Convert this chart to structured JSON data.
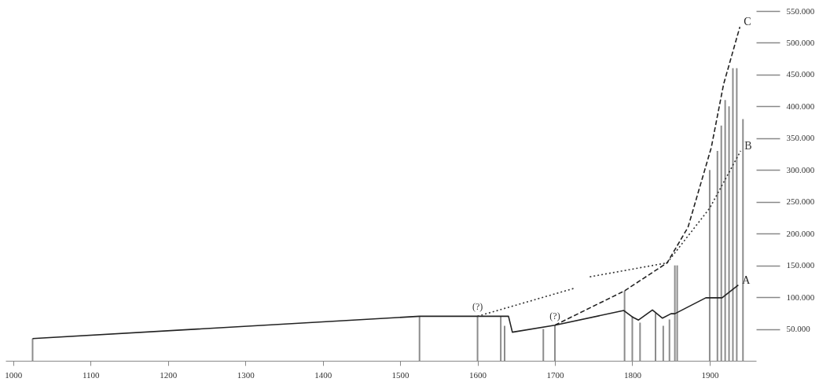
{
  "chart_data": {
    "type": "line",
    "xlim": [
      990,
      1960
    ],
    "ylim": [
      0,
      550000
    ],
    "xticks": [
      1000,
      1100,
      1200,
      1300,
      1400,
      1500,
      1600,
      1700,
      1800,
      1900
    ],
    "yticks": [
      {
        "value": 50000,
        "label": "50.000"
      },
      {
        "value": 100000,
        "label": "100.000"
      },
      {
        "value": 150000,
        "label": "150.000"
      },
      {
        "value": 200000,
        "label": "200.000"
      },
      {
        "value": 250000,
        "label": "250.000"
      },
      {
        "value": 300000,
        "label": "300.000"
      },
      {
        "value": 350000,
        "label": "350.000"
      },
      {
        "value": 400000,
        "label": "400.000"
      },
      {
        "value": 450000,
        "label": "450.000"
      },
      {
        "value": 500000,
        "label": "500.000"
      },
      {
        "value": 550000,
        "label": "550.000"
      }
    ],
    "grid": false,
    "marker": "none",
    "series": [
      {
        "type": "bar",
        "color": "#8c8c8c",
        "x": [
          1025,
          1525,
          1600,
          1630,
          1635,
          1685,
          1700,
          1790,
          1800,
          1810,
          1830,
          1840,
          1848,
          1855,
          1858,
          1900,
          1910,
          1915,
          1920,
          1925,
          1930,
          1935,
          1943
        ],
        "values": [
          35000,
          70000,
          70000,
          70000,
          55000,
          50000,
          56000,
          110000,
          70000,
          60000,
          75000,
          55000,
          65000,
          150000,
          150000,
          300000,
          330000,
          370000,
          410000,
          400000,
          460000,
          460000,
          380000
        ]
      },
      {
        "name": "A",
        "line_style": "solid",
        "color": "#222222",
        "x": [
          1025,
          1525,
          1640,
          1645,
          1700,
          1789,
          1800,
          1808,
          1826,
          1839,
          1850,
          1855,
          1895,
          1916,
          1937
        ],
        "values": [
          35000,
          70000,
          70000,
          45000,
          56000,
          79000,
          69000,
          64000,
          80000,
          67000,
          74000,
          74000,
          99000,
          99000,
          119000
        ]
      },
      {
        "name": "B",
        "line_style": "dotted",
        "color": "#333333",
        "x": [
          1600,
          1725,
          1735,
          1745,
          1845,
          1900,
          1940
        ],
        "values": [
          70000,
          114000,
          null,
          132000,
          154000,
          240000,
          330000
        ]
      },
      {
        "name": "C",
        "line_style": "dashed",
        "color": "#222222",
        "x": [
          1700,
          1790,
          1845,
          1872,
          1902,
          1918,
          1939
        ],
        "values": [
          56000,
          110000,
          154000,
          210000,
          335000,
          435000,
          525000
        ]
      }
    ],
    "annotations": [
      {
        "text": "(?)",
        "x": 1600,
        "y": 70000
      },
      {
        "text": "(?)",
        "x": 1700,
        "y": 56000
      }
    ]
  }
}
